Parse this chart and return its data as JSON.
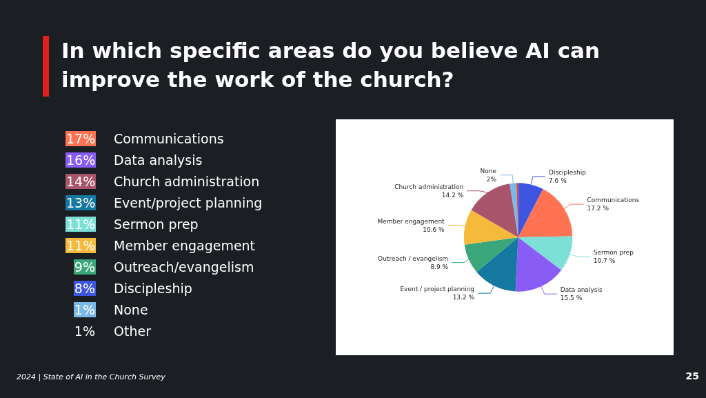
{
  "chart_data": [
    {
      "type": "other",
      "title": "In which specific areas do you believe AI can improve the work of the church?",
      "categories": [
        "Communications",
        "Data analysis",
        "Church administration",
        "Event/project planning",
        "Sermon prep",
        "Member engagement",
        "Outreach/evangelism",
        "Discipleship",
        "None",
        "Other"
      ],
      "value_labels": [
        "17%",
        "16%",
        "14%",
        "13%",
        "11%",
        "11%",
        "9%",
        "8%",
        "1%",
        "1%"
      ],
      "colors": [
        "#ff7352",
        "#8a5cf6",
        "#a8546a",
        "#1478a0",
        "#7de0d6",
        "#f6b93b",
        "#3aa67a",
        "#3d55e0",
        "#7ab8e8",
        null
      ]
    },
    {
      "type": "pie",
      "categories": [
        "Discipleship",
        "Communications",
        "Sermon prep",
        "Data analysis",
        "Event / project planning",
        "Outreach / evangelism",
        "Member engagement",
        "Church administration",
        "None",
        null
      ],
      "values": [
        7.6,
        17.2,
        10.7,
        15.5,
        13.2,
        8.9,
        10.6,
        14.2,
        2,
        0.5
      ],
      "value_labels": [
        "7.6 %",
        "17.2 %",
        "10.7 %",
        "15.5 %",
        "13.2 %",
        "8.9 %",
        "10.6 %",
        "14.2 %",
        "2%",
        null
      ],
      "colors": [
        "#3d55e0",
        "#ff7352",
        "#7de0d6",
        "#8a5cf6",
        "#1478a0",
        "#3aa67a",
        "#f6b93b",
        "#a8546a",
        "#7ab8e8",
        "#e0403a"
      ],
      "annotations": [
        "2024 | State of AI in the Church Survey",
        "25"
      ]
    }
  ]
}
